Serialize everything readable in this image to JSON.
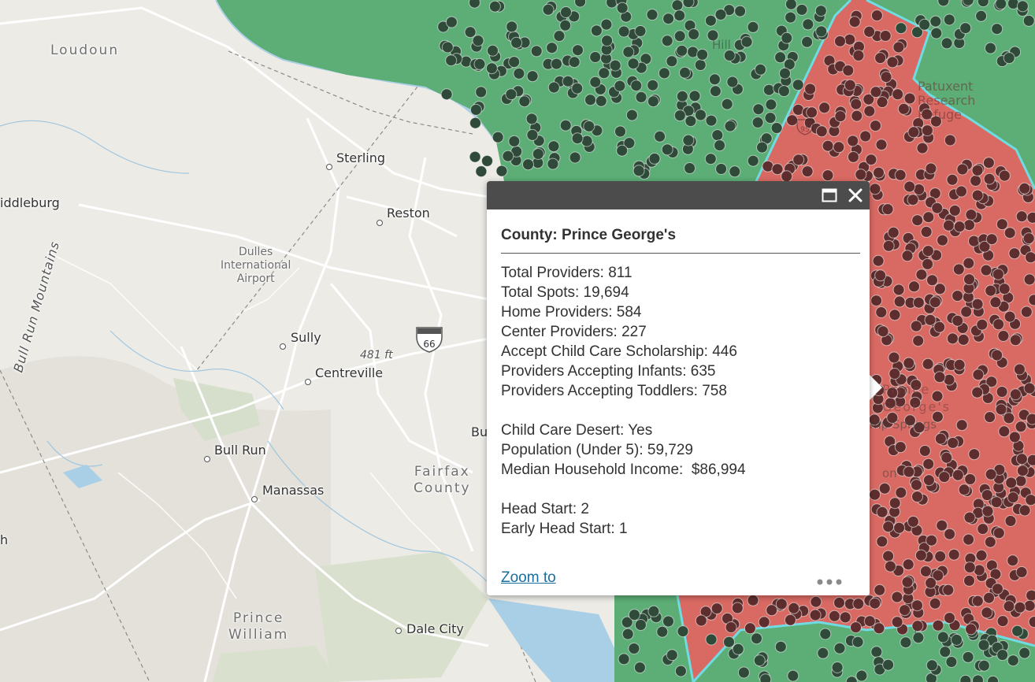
{
  "colors": {
    "desert_fill": "#d96a63",
    "non_desert_fill": "#5cad76",
    "provider_point_desert": "#5e2e2e",
    "provider_point_non_desert": "#2f4a38",
    "county_boundary": "#6fdbe3",
    "popup_header": "#4c4c4c",
    "link": "#1a6ea0"
  },
  "map_labels": {
    "loudoun": "Loudoun",
    "middleburg": "iddleburg",
    "bull_run_mountains": "Bull Run Mountains",
    "sterling": "Sterling",
    "reston": "Reston",
    "dulles_line1": "Dulles",
    "dulles_line2": "International",
    "dulles_line3": "Airport",
    "sully": "Sully",
    "centreville": "Centreville",
    "elevation": "481 ft",
    "interstate": "66",
    "bull_run": "Bull Run",
    "manassas": "Manassas",
    "fairfax_line1": "Fairfax",
    "fairfax_line2": "County",
    "prince_william_line1": "Prince",
    "prince_william_line2": "William",
    "dale_city": "Dale City",
    "bu_cut": "Bu",
    "h_cut": "h",
    "patuxent_line1": "Patuxent",
    "patuxent_line2": "Research",
    "patuxent_line3": "Refuge",
    "highway_95": "95",
    "pg_line1": "Prince",
    "pg_line2": "George's",
    "camp_springs": "mp Springs",
    "on_cut": "on",
    "hill_cut": "Hill",
    "f_cut": "f"
  },
  "popup": {
    "title": "County: Prince George's",
    "fields": [
      "Total Providers: 811",
      "Total Spots: 19,694",
      "Home Providers: 584",
      "Center Providers: 227",
      "Accept Child Care Scholarship: 446",
      "Providers Accepting Infants: 635",
      "Providers Accepting Toddlers: 758"
    ],
    "fields2": [
      "Child Care Desert: Yes",
      "Population (Under 5): 59,729",
      "Median Household Income:  $86,994"
    ],
    "fields3": [
      "Head Start: 2",
      "Early Head Start: 1"
    ],
    "zoom_label": "Zoom to",
    "maximize_icon": "maximize-icon",
    "close_icon": "close-icon",
    "more_icon": "ellipsis-icon"
  }
}
